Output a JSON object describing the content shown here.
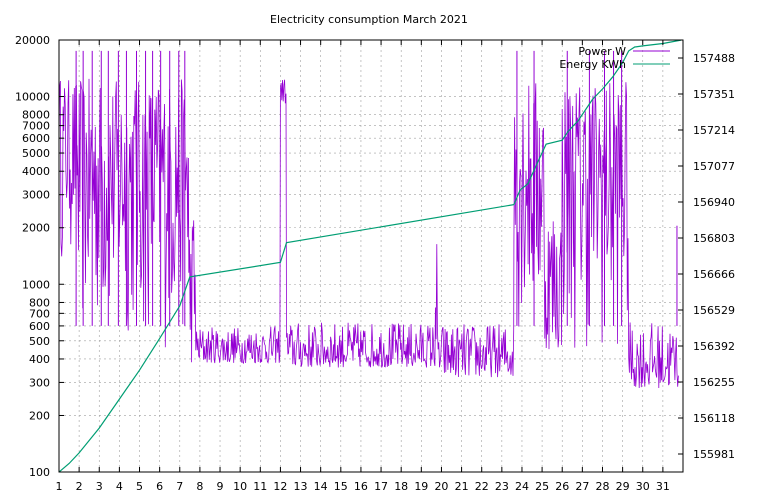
{
  "chart_data": {
    "type": "line",
    "title": "Electricity consumption March 2021",
    "xlabel": "",
    "ylabel": "",
    "y2label": "",
    "grid": true,
    "legend_position": "top-right",
    "x_range": [
      1,
      32
    ],
    "x_ticks": [
      "1",
      "2",
      "3",
      "4",
      "5",
      "6",
      "7",
      "8",
      "9",
      "10",
      "11",
      "12",
      "13",
      "14",
      "15",
      "16",
      "17",
      "18",
      "19",
      "20",
      "21",
      "22",
      "23",
      "24",
      "25",
      "26",
      "27",
      "28",
      "29",
      "30",
      "31"
    ],
    "y_scale": "log",
    "y_range": [
      100,
      20000
    ],
    "y_ticks": [
      "100",
      "200",
      "300",
      "400",
      "500",
      "600",
      "700",
      "800",
      "1000",
      "2000",
      "3000",
      "4000",
      "5000",
      "6000",
      "7000",
      "8000",
      "10000",
      "20000"
    ],
    "y2_range": [
      155912.5,
      157556.5
    ],
    "y2_ticks": [
      "155981",
      "156118",
      "156255",
      "156392",
      "156529",
      "156666",
      "156803",
      "156940",
      "157077",
      "157214",
      "157351",
      "157488"
    ],
    "series": [
      {
        "name": "Power W",
        "color": "#9400d3",
        "axis": "y1",
        "segments": [
          {
            "from": 1.0,
            "to": 1.1,
            "low": 4500,
            "high": 12500
          },
          {
            "from": 1.1,
            "to": 1.9,
            "low": 1200,
            "high": 12500
          },
          {
            "from": 1.9,
            "to": 7.45,
            "low": 420,
            "high": 12500
          },
          {
            "from": 7.45,
            "to": 7.8,
            "low": 380,
            "high": 3000
          },
          {
            "from": 7.8,
            "to": 12.0,
            "low": 380,
            "high": 600
          },
          {
            "from": 12.0,
            "to": 12.3,
            "low": 8500,
            "high": 12500
          },
          {
            "from": 12.3,
            "to": 19.7,
            "low": 360,
            "high": 630
          },
          {
            "from": 19.7,
            "to": 19.8,
            "low": 400,
            "high": 2050
          },
          {
            "from": 19.8,
            "to": 23.6,
            "low": 320,
            "high": 620
          },
          {
            "from": 23.6,
            "to": 24.2,
            "low": 500,
            "high": 12500
          },
          {
            "from": 24.2,
            "to": 25.1,
            "low": 400,
            "high": 12500
          },
          {
            "from": 25.1,
            "to": 26.0,
            "low": 450,
            "high": 3000
          },
          {
            "from": 26.0,
            "to": 29.3,
            "low": 380,
            "high": 12500
          },
          {
            "from": 29.3,
            "to": 31.8,
            "low": 280,
            "high": 630
          }
        ],
        "spikes": [
          {
            "x": 1.85,
            "y": 17500
          },
          {
            "x": 2.2,
            "y": 17500
          },
          {
            "x": 2.65,
            "y": 17500
          },
          {
            "x": 3.1,
            "y": 17500
          },
          {
            "x": 3.45,
            "y": 17500
          },
          {
            "x": 3.95,
            "y": 17500
          },
          {
            "x": 4.35,
            "y": 17500
          },
          {
            "x": 4.85,
            "y": 17500
          },
          {
            "x": 5.3,
            "y": 17500
          },
          {
            "x": 5.65,
            "y": 17500
          },
          {
            "x": 6.05,
            "y": 17500
          },
          {
            "x": 6.5,
            "y": 17500
          },
          {
            "x": 6.95,
            "y": 17500
          },
          {
            "x": 7.25,
            "y": 17500
          },
          {
            "x": 23.75,
            "y": 17500
          },
          {
            "x": 24.6,
            "y": 17500
          },
          {
            "x": 26.25,
            "y": 17500
          },
          {
            "x": 27.35,
            "y": 17500
          },
          {
            "x": 28.1,
            "y": 17500
          },
          {
            "x": 28.55,
            "y": 17500
          },
          {
            "x": 28.95,
            "y": 17500
          },
          {
            "x": 31.7,
            "y": 2050
          }
        ]
      },
      {
        "name": "Energy KWh",
        "color": "#009e73",
        "axis": "y2",
        "x": [
          1.0,
          1.5,
          2.0,
          3.0,
          4.0,
          5.0,
          6.0,
          7.0,
          7.5,
          12.0,
          12.3,
          23.6,
          23.9,
          24.3,
          24.8,
          25.2,
          26.0,
          26.3,
          26.8,
          27.5,
          28.0,
          28.5,
          29.0,
          29.3,
          29.6,
          30.0,
          31.0,
          31.9
        ],
        "y": [
          155912,
          155945,
          155985,
          156080,
          156190,
          156300,
          156420,
          156545,
          156655,
          156710,
          156785,
          156930,
          156985,
          157010,
          157095,
          157160,
          157175,
          157210,
          157250,
          157330,
          157370,
          157415,
          157470,
          157515,
          157530,
          157534,
          157543,
          157556
        ]
      }
    ]
  }
}
